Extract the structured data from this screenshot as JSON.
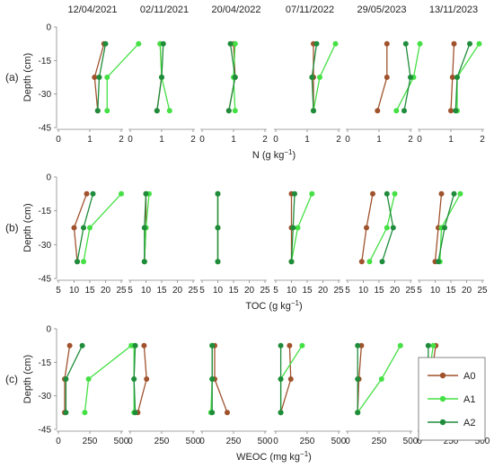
{
  "dates": [
    "12/04/2021",
    "02/11/2021",
    "20/04/2022",
    "07/11/2022",
    "29/05/2023",
    "13/11/2023"
  ],
  "depth_ticks": [
    "0",
    "-15",
    "-30",
    "-45"
  ],
  "legend": {
    "entries": [
      {
        "name": "A0",
        "color": "#a0522d"
      },
      {
        "name": "A1",
        "color": "#44e044"
      },
      {
        "name": "A2",
        "color": "#1e8c3a"
      }
    ]
  },
  "chart_data": [
    {
      "type": "line",
      "row_label": "(a)",
      "ylabel": "Depth (cm)",
      "xlabel": "N (g kg",
      "xlabel_sup": "−1",
      "xlabel_end": ")",
      "xlim": [
        0,
        2
      ],
      "ylim": [
        -45,
        0
      ],
      "x_ticks": [
        "0",
        "1",
        "2"
      ],
      "depths": [
        -7.5,
        -22.5,
        -37.5
      ],
      "panels": [
        {
          "date": "12/04/2021",
          "series": [
            {
              "name": "A0",
              "values": [
                1.45,
                1.15,
                1.25
              ]
            },
            {
              "name": "A1",
              "values": [
                2.55,
                1.55,
                1.55
              ]
            },
            {
              "name": "A2",
              "values": [
                1.5,
                1.3,
                1.25
              ]
            }
          ]
        },
        {
          "date": "02/11/2021",
          "series": [
            {
              "name": "A0",
              "values": [
                0.95,
                1.0,
                0.85
              ]
            },
            {
              "name": "A1",
              "values": [
                0.95,
                1.0,
                1.25
              ]
            },
            {
              "name": "A2",
              "values": [
                1.05,
                1.0,
                0.85
              ]
            }
          ]
        },
        {
          "date": "20/04/2022",
          "series": [
            {
              "name": "A0",
              "values": [
                1.0,
                1.05,
                0.85
              ]
            },
            {
              "name": "A1",
              "values": [
                1.05,
                1.0,
                1.05
              ]
            },
            {
              "name": "A2",
              "values": [
                0.9,
                1.05,
                0.85
              ]
            }
          ]
        },
        {
          "date": "07/11/2022",
          "series": [
            {
              "name": "A0",
              "values": [
                1.2,
                1.2,
                1.2
              ]
            },
            {
              "name": "A1",
              "values": [
                1.9,
                1.4,
                1.2
              ]
            },
            {
              "name": "A2",
              "values": [
                1.3,
                1.15,
                1.2
              ]
            }
          ]
        },
        {
          "date": "29/05/2023",
          "series": [
            {
              "name": "A0",
              "values": [
                1.25,
                1.25,
                0.95
              ]
            },
            {
              "name": "A1",
              "values": [
                2.3,
                2.1,
                1.55
              ]
            },
            {
              "name": "A2",
              "values": [
                1.85,
                2.0,
                1.8
              ]
            }
          ]
        },
        {
          "date": "13/11/2023",
          "series": [
            {
              "name": "A0",
              "values": [
                1.1,
                1.05,
                1.0
              ]
            },
            {
              "name": "A1",
              "values": [
                1.9,
                1.2,
                1.2
              ]
            },
            {
              "name": "A2",
              "values": [
                1.6,
                1.2,
                1.15
              ]
            }
          ]
        }
      ]
    },
    {
      "type": "line",
      "row_label": "(b)",
      "ylabel": "Depth (cm)",
      "xlabel": "TOC (g kg",
      "xlabel_sup": "−1",
      "xlabel_end": ")",
      "xlim": [
        5,
        25
      ],
      "ylim": [
        -45,
        0
      ],
      "x_ticks": [
        "5",
        "10",
        "15",
        "20",
        "25"
      ],
      "depths": [
        -7.5,
        -22.5,
        -37.5
      ],
      "panels": [
        {
          "date": "12/04/2021",
          "series": [
            {
              "name": "A0",
              "values": [
                14,
                10,
                11
              ]
            },
            {
              "name": "A1",
              "values": [
                25,
                15,
                13
              ]
            },
            {
              "name": "A2",
              "values": [
                16,
                13,
                11
              ]
            }
          ]
        },
        {
          "date": "02/11/2021",
          "series": [
            {
              "name": "A0",
              "values": [
                10,
                10,
                9.5
              ]
            },
            {
              "name": "A1",
              "values": [
                11,
                10,
                9.5
              ]
            },
            {
              "name": "A2",
              "values": [
                10,
                9.5,
                9.5
              ]
            }
          ]
        },
        {
          "date": "20/04/2022",
          "series": [
            {
              "name": "A0",
              "values": [
                10,
                10,
                10
              ]
            },
            {
              "name": "A1",
              "values": [
                10,
                10,
                10
              ]
            },
            {
              "name": "A2",
              "values": [
                10,
                10,
                10
              ]
            }
          ]
        },
        {
          "date": "07/11/2022",
          "series": [
            {
              "name": "A0",
              "values": [
                10,
                10,
                10
              ]
            },
            {
              "name": "A1",
              "values": [
                16.5,
                12,
                10
              ]
            },
            {
              "name": "A2",
              "values": [
                11,
                10.5,
                10
              ]
            }
          ]
        },
        {
          "date": "29/05/2023",
          "series": [
            {
              "name": "A0",
              "values": [
                13,
                11,
                9.5
              ]
            },
            {
              "name": "A1",
              "values": [
                20,
                17.5,
                12
              ]
            },
            {
              "name": "A2",
              "values": [
                17.5,
                19.5,
                16
              ]
            }
          ]
        },
        {
          "date": "13/11/2023",
          "series": [
            {
              "name": "A0",
              "values": [
                12,
                11,
                10
              ]
            },
            {
              "name": "A1",
              "values": [
                18,
                12,
                11.5
              ]
            },
            {
              "name": "A2",
              "values": [
                16,
                13,
                11
              ]
            }
          ]
        }
      ]
    },
    {
      "type": "line",
      "row_label": "(c)",
      "ylabel": "Depth (cm)",
      "xlabel": "WEOC (mg kg",
      "xlabel_sup": "−1",
      "xlabel_end": ")",
      "xlim": [
        0,
        500
      ],
      "ylim": [
        -45,
        0
      ],
      "x_ticks": [
        "0",
        "250",
        "500"
      ],
      "depths": [
        -7.5,
        -22.5,
        -37.5
      ],
      "panels": [
        {
          "date": "12/04/2021",
          "series": [
            {
              "name": "A0",
              "values": [
                90,
                50,
                50
              ]
            },
            {
              "name": "A1",
              "values": [
                580,
                240,
                210
              ]
            },
            {
              "name": "A2",
              "values": [
                190,
                60,
                60
              ]
            }
          ]
        },
        {
          "date": "02/11/2021",
          "series": [
            {
              "name": "A0",
              "values": [
                110,
                130,
                60
              ]
            },
            {
              "name": "A1",
              "values": [
                30,
                30,
                30
              ]
            },
            {
              "name": "A2",
              "values": [
                40,
                30,
                40
              ]
            }
          ]
        },
        {
          "date": "20/04/2022",
          "series": [
            {
              "name": "A0",
              "values": [
                100,
                100,
                200
              ]
            },
            {
              "name": "A1",
              "values": [
                80,
                80,
                70
              ]
            },
            {
              "name": "A2",
              "values": [
                80,
                80,
                80
              ]
            }
          ]
        },
        {
          "date": "07/11/2022",
          "series": [
            {
              "name": "A0",
              "values": [
                110,
                120,
                40
              ]
            },
            {
              "name": "A1",
              "values": [
                210,
                40,
                40
              ]
            },
            {
              "name": "A2",
              "values": [
                40,
                40,
                40
              ]
            }
          ]
        },
        {
          "date": "29/05/2023",
          "series": [
            {
              "name": "A0",
              "values": [
                110,
                90,
                80
              ]
            },
            {
              "name": "A1",
              "values": [
                420,
                270,
                80
              ]
            },
            {
              "name": "A2",
              "values": [
                80,
                80,
                80
              ]
            }
          ]
        },
        {
          "date": "13/11/2023",
          "series": [
            {
              "name": "A0",
              "values": [
                130,
                90,
                60
              ]
            },
            {
              "name": "A1",
              "values": [
                110,
                70,
                70
              ]
            },
            {
              "name": "A2",
              "values": [
                70,
                70,
                70
              ]
            }
          ]
        }
      ]
    }
  ]
}
